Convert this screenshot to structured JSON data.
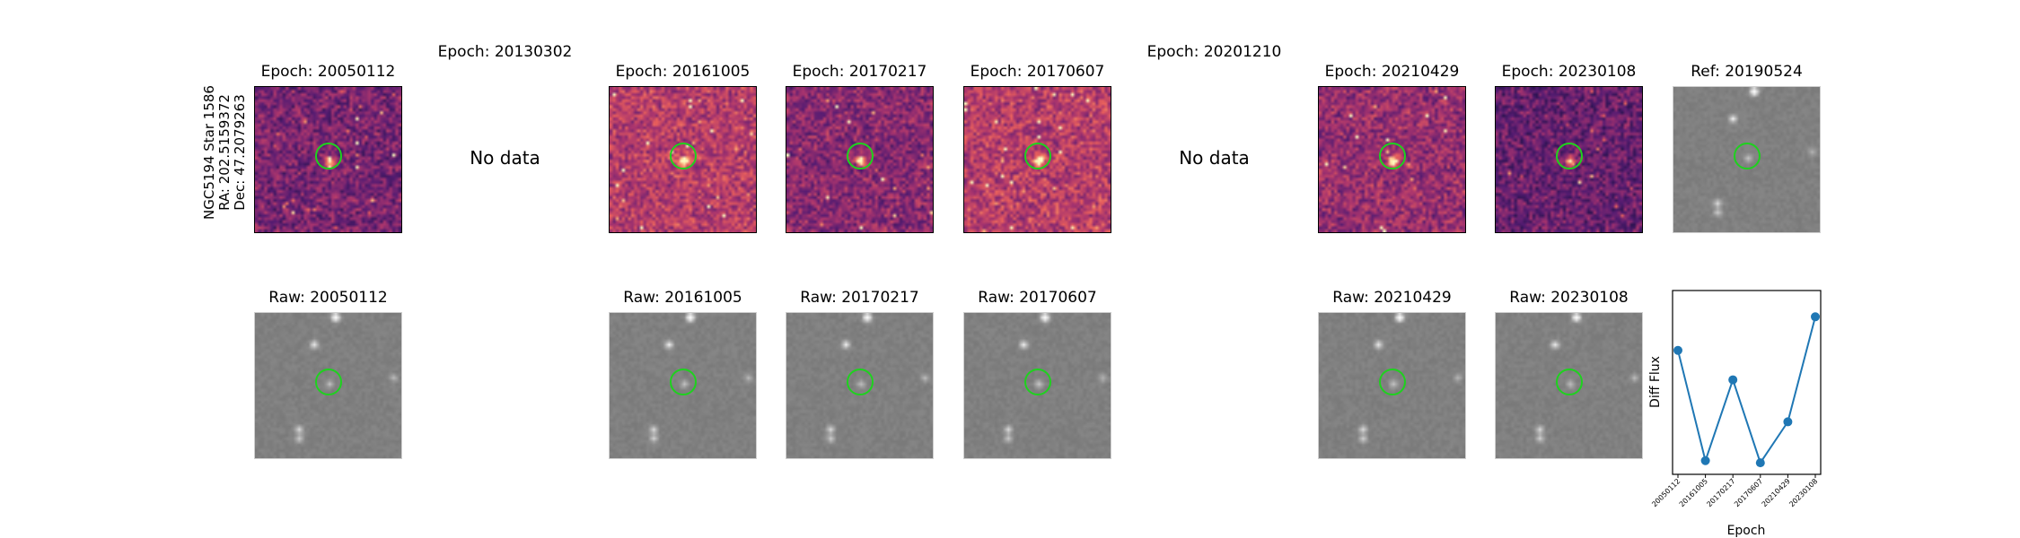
{
  "star": {
    "name": "NGC5194 Star 1586",
    "ra": "RA: 202.5159372",
    "dec": "Dec: 47.2079263"
  },
  "diff_panels": [
    {
      "title": "Epoch: 20050112",
      "has_data": true
    },
    {
      "title": "Epoch: 20130302",
      "has_data": false,
      "no_data_text": "No data"
    },
    {
      "title": "Epoch: 20161005",
      "has_data": true
    },
    {
      "title": "Epoch: 20170217",
      "has_data": true
    },
    {
      "title": "Epoch: 20170607",
      "has_data": true
    },
    {
      "title": "Epoch: 20201210",
      "has_data": false,
      "no_data_text": "No data"
    },
    {
      "title": "Epoch: 20210429",
      "has_data": true
    },
    {
      "title": "Epoch: 20230108",
      "has_data": true
    },
    {
      "title": "Ref: 20190524",
      "has_data": true
    }
  ],
  "raw_panels": [
    {
      "title": "Raw: 20050112"
    },
    {
      "title": "Raw: 20161005"
    },
    {
      "title": "Raw: 20170217"
    },
    {
      "title": "Raw: 20170607"
    },
    {
      "title": "Raw: 20210429"
    },
    {
      "title": "Raw: 20230108"
    }
  ],
  "colors": {
    "circle": "#1ed21e",
    "line": "#1f77b4"
  },
  "chart_data": {
    "type": "line",
    "x": [
      "20050112",
      "20161005",
      "20170217",
      "20170607",
      "20210429",
      "20230108"
    ],
    "series": [
      {
        "values": [
          0.63,
          -0.42,
          0.35,
          -0.44,
          -0.05,
          0.95
        ]
      }
    ],
    "xlabel": "Epoch",
    "ylabel": "Diff Flux",
    "ylim": [
      -0.55,
      1.2
    ],
    "grid": false
  }
}
